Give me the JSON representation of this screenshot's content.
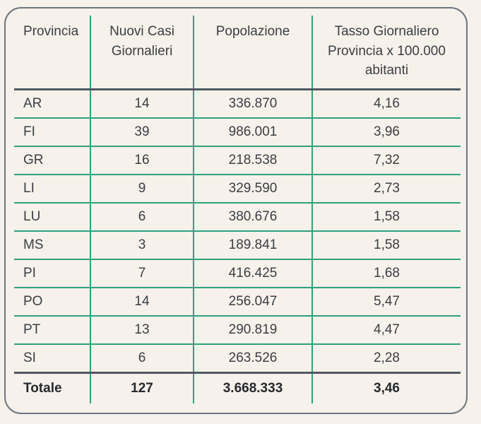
{
  "chart_data": {
    "type": "table",
    "columns": [
      "Provincia",
      "Nuovi Casi Giornalieri",
      "Popolazione",
      "Tasso Giornaliero Provincia x 100.000 abitanti"
    ],
    "rows": [
      [
        "AR",
        "14",
        "336.870",
        "4,16"
      ],
      [
        "FI",
        "39",
        "986.001",
        "3,96"
      ],
      [
        "GR",
        "16",
        "218.538",
        "7,32"
      ],
      [
        "LI",
        "9",
        "329.590",
        "2,73"
      ],
      [
        "LU",
        "6",
        "380.676",
        "1,58"
      ],
      [
        "MS",
        "3",
        "189.841",
        "1,58"
      ],
      [
        "PI",
        "7",
        "416.425",
        "1,68"
      ],
      [
        "PO",
        "14",
        "256.047",
        "5,47"
      ],
      [
        "PT",
        "13",
        "290.819",
        "4,47"
      ],
      [
        "SI",
        "6",
        "263.526",
        "2,28"
      ]
    ],
    "total_row": [
      "Totale",
      "127",
      "3.668.333",
      "3,46"
    ]
  },
  "colors": {
    "background": "#f6f1ea",
    "panelBorder": "#6e7780",
    "green": "#2fa07e",
    "dark": "#4e5862",
    "text": "#3a3e45",
    "totalText": "#26292e"
  }
}
